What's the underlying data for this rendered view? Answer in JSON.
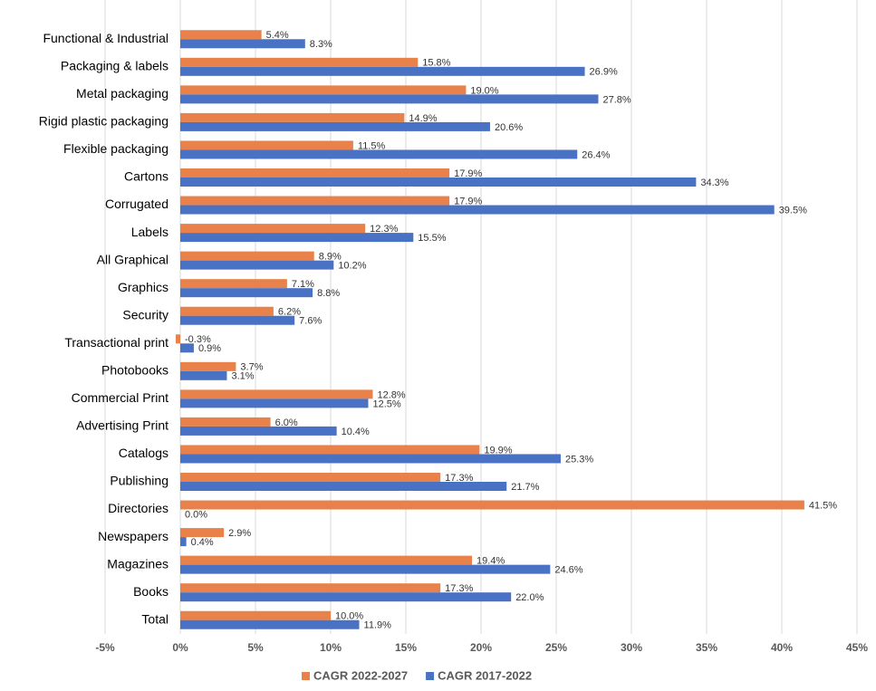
{
  "chart_data": {
    "type": "hbar",
    "categories": [
      "Functional & Industrial",
      "Packaging & labels",
      "Metal packaging",
      "Rigid plastic packaging",
      "Flexible packaging",
      "Cartons",
      "Corrugated",
      "Labels",
      "All Graphical",
      "Graphics",
      "Security",
      "Transactional print",
      "Photobooks",
      "Commercial Print",
      "Advertising Print",
      "Catalogs",
      "Publishing",
      "Directories",
      "Newspapers",
      "Magazines",
      "Books",
      "Total"
    ],
    "series": [
      {
        "name": "CAGR 2022-2027",
        "color": "#e8824a",
        "values": [
          5.4,
          15.8,
          19.0,
          14.9,
          11.5,
          17.9,
          17.9,
          12.3,
          8.9,
          7.1,
          6.2,
          -0.3,
          3.7,
          12.8,
          6.0,
          19.9,
          17.3,
          41.5,
          2.9,
          19.4,
          17.3,
          10.0
        ],
        "value_labels": [
          "5.4%",
          "15.8%",
          "19.0%",
          "14.9%",
          "11.5%",
          "17.9%",
          "17.9%",
          "12.3%",
          "8.9%",
          "7.1%",
          "6.2%",
          "-0.3%",
          "3.7%",
          "12.8%",
          "6.0%",
          "19.9%",
          "17.3%",
          "41.5%",
          "2.9%",
          "19.4%",
          "17.3%",
          "10.0%"
        ]
      },
      {
        "name": "CAGR 2017-2022",
        "color": "#4a72c4",
        "values": [
          8.3,
          26.9,
          27.8,
          20.6,
          26.4,
          34.3,
          39.5,
          15.5,
          10.2,
          8.8,
          7.6,
          0.9,
          3.1,
          12.5,
          10.4,
          25.3,
          21.7,
          0.0,
          0.4,
          24.6,
          22.0,
          11.9
        ],
        "value_labels": [
          "8.3%",
          "26.9%",
          "27.8%",
          "20.6%",
          "26.4%",
          "34.3%",
          "39.5%",
          "15.5%",
          "10.2%",
          "8.8%",
          "7.6%",
          "0.9%",
          "3.1%",
          "12.5%",
          "10.4%",
          "25.3%",
          "21.7%",
          "0.0%",
          "0.4%",
          "24.6%",
          "22.0%",
          "11.9%"
        ]
      }
    ],
    "xlim": [
      -5,
      45
    ],
    "xticks": [
      {
        "value": -5,
        "label": "-5%"
      },
      {
        "value": 0,
        "label": "0%"
      },
      {
        "value": 5,
        "label": "5%"
      },
      {
        "value": 10,
        "label": "10%"
      },
      {
        "value": 15,
        "label": "15%"
      },
      {
        "value": 20,
        "label": "20%"
      },
      {
        "value": 25,
        "label": "25%"
      },
      {
        "value": 30,
        "label": "30%"
      },
      {
        "value": 35,
        "label": "35%"
      },
      {
        "value": 40,
        "label": "40%"
      },
      {
        "value": 45,
        "label": "45%"
      }
    ],
    "grid": true,
    "legend": "bottom"
  }
}
